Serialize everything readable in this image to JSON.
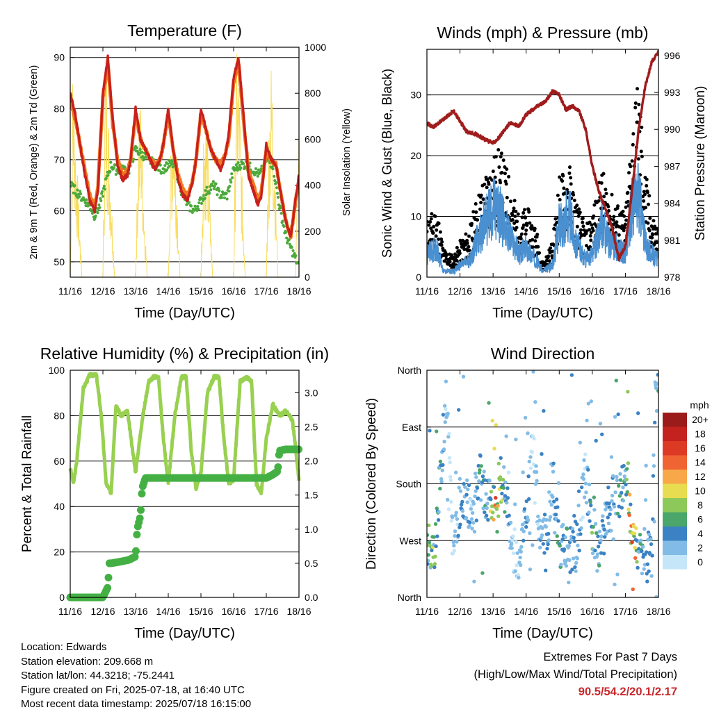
{
  "chart_data": [
    {
      "type": "line",
      "title": "Temperature (F)",
      "xlabel": "Time (Day/UTC)",
      "ylabel": "2m & 9m T (Red, Orange) & 2m Td (Green)",
      "y2label": "Solar Insolation (Yellow)",
      "x_ticks": [
        "11/16",
        "12/16",
        "13/16",
        "14/16",
        "15/16",
        "16/16",
        "17/16",
        "18/16"
      ],
      "ylim": [
        47,
        92
      ],
      "y_ticks": [
        50,
        60,
        70,
        80,
        90
      ],
      "y2lim": [
        0,
        1000
      ],
      "y2_ticks": [
        0,
        200,
        400,
        600,
        800,
        1000
      ],
      "grid": "horizontal",
      "colors": {
        "t2m": "#c8201c",
        "t9m": "#f07820",
        "td2m": "#4caa3c",
        "solar": "#f8dc5c"
      },
      "series": [
        {
          "key": "t2m",
          "x": [
            0,
            0.15,
            0.3,
            0.45,
            0.6,
            0.75,
            0.85,
            1.0,
            1.15,
            1.3,
            1.45,
            1.6,
            1.75,
            1.85,
            2.0,
            2.15,
            2.3,
            2.45,
            2.6,
            2.75,
            2.85,
            3.0,
            3.15,
            3.3,
            3.45,
            3.6,
            3.75,
            3.85,
            4.0,
            4.15,
            4.3,
            4.45,
            4.6,
            4.75,
            4.85,
            5.0,
            5.15,
            5.3,
            5.45,
            5.6,
            5.75,
            5.85,
            6.0,
            6.15,
            6.3,
            6.45,
            6.6,
            6.75,
            6.85,
            7.0
          ],
          "values": [
            83,
            79,
            73,
            67,
            62,
            60,
            64,
            83,
            90,
            78,
            69,
            66,
            67,
            70,
            80,
            74,
            72,
            70,
            68,
            70,
            73,
            80,
            72,
            66,
            63,
            62,
            66,
            70,
            80,
            76,
            72,
            70,
            68,
            71,
            75,
            86,
            90,
            79,
            67,
            64,
            61,
            63,
            73,
            70,
            69,
            63,
            58,
            55,
            60,
            67
          ]
        },
        {
          "key": "t9m",
          "x": [
            0,
            0.15,
            0.3,
            0.45,
            0.6,
            0.75,
            0.85,
            1.0,
            1.15,
            1.3,
            1.45,
            1.6,
            1.75,
            1.85,
            2.0,
            2.15,
            2.3,
            2.45,
            2.6,
            2.75,
            2.85,
            3.0,
            3.15,
            3.3,
            3.45,
            3.6,
            3.75,
            3.85,
            4.0,
            4.15,
            4.3,
            4.45,
            4.6,
            4.75,
            4.85,
            5.0,
            5.15,
            5.3,
            5.45,
            5.6,
            5.75,
            5.85,
            6.0,
            6.15,
            6.3,
            6.45,
            6.6,
            6.75,
            6.85,
            7.0
          ],
          "values": [
            82,
            78,
            73,
            68,
            63,
            61,
            65,
            82,
            89,
            77,
            70,
            67,
            68,
            70,
            79,
            74,
            72,
            70,
            69,
            70,
            73,
            79,
            72,
            67,
            64,
            63,
            66,
            70,
            79,
            76,
            72,
            70,
            69,
            71,
            74,
            85,
            89,
            78,
            68,
            65,
            62,
            64,
            72,
            70,
            69,
            63,
            58,
            55,
            60,
            66
          ]
        },
        {
          "key": "td2m",
          "x": [
            0,
            0.15,
            0.3,
            0.45,
            0.6,
            0.75,
            0.9,
            1.1,
            1.25,
            1.4,
            1.6,
            1.8,
            2.0,
            2.2,
            2.4,
            2.6,
            2.8,
            3.0,
            3.2,
            3.4,
            3.6,
            3.8,
            4.0,
            4.2,
            4.4,
            4.6,
            4.8,
            5.0,
            5.2,
            5.4,
            5.6,
            5.8,
            6.0,
            6.2,
            6.4,
            6.6,
            6.8,
            7.0
          ],
          "values": [
            65,
            64,
            63,
            62,
            61,
            59,
            61,
            66,
            69,
            68,
            68,
            68,
            72,
            71,
            70,
            69,
            68,
            69,
            69,
            64,
            61,
            60,
            62,
            64,
            65,
            63,
            63,
            68,
            69,
            69,
            68,
            67,
            70,
            69,
            61,
            55,
            52,
            49
          ]
        },
        {
          "key": "solar",
          "x": [
            0,
            0.08,
            0.16,
            0.26,
            0.36,
            0.9,
            1.0,
            1.08,
            1.16,
            1.26,
            1.36,
            1.9,
            2.0,
            2.08,
            2.16,
            2.26,
            2.36,
            2.9,
            3.0,
            3.08,
            3.16,
            3.26,
            3.36,
            3.9,
            4.0,
            4.08,
            4.16,
            4.26,
            4.36,
            4.9,
            5.0,
            5.08,
            5.16,
            5.26,
            5.36,
            5.9,
            6.0,
            6.08,
            6.16,
            6.26,
            6.36,
            6.9,
            7.0
          ],
          "values": [
            0,
            950,
            600,
            300,
            0,
            0,
            0,
            980,
            700,
            350,
            0,
            0,
            0,
            600,
            750,
            300,
            0,
            0,
            0,
            550,
            800,
            400,
            0,
            0,
            0,
            650,
            700,
            350,
            0,
            0,
            0,
            900,
            850,
            400,
            0,
            0,
            0,
            700,
            900,
            500,
            0,
            0,
            900
          ]
        }
      ]
    },
    {
      "type": "scatter",
      "title": "Winds (mph) & Pressure (mb)",
      "xlabel": "Time (Day/UTC)",
      "ylabel": "Sonic Wind & Gust (Blue, Black)",
      "y2label": "Station Pressure (Maroon)",
      "x_ticks": [
        "11/16",
        "12/16",
        "13/16",
        "14/16",
        "15/16",
        "16/16",
        "17/16",
        "18/16"
      ],
      "ylim": [
        0,
        37.5
      ],
      "y_ticks": [
        0,
        10,
        20,
        30
      ],
      "y2lim": [
        978,
        996.5
      ],
      "y2_ticks": [
        978,
        981,
        984,
        987,
        990,
        993,
        996
      ],
      "grid": "horizontal",
      "colors": {
        "wind": "#4a90d0",
        "gust": "#000000",
        "pressure": "#a01c1c"
      },
      "series": [
        {
          "key": "wind",
          "x": [
            0,
            0.3,
            0.5,
            0.8,
            1.0,
            1.3,
            1.5,
            1.8,
            2.0,
            2.2,
            2.5,
            2.8,
            3.0,
            3.3,
            3.5,
            3.8,
            4.0,
            4.3,
            4.5,
            4.8,
            5.0,
            5.3,
            5.5,
            5.8,
            6.0,
            6.2,
            6.4,
            6.6,
            6.8,
            7.0
          ],
          "values": [
            4,
            5,
            1,
            1,
            2,
            3,
            6,
            10,
            12,
            11,
            7,
            4,
            5,
            3,
            1,
            2,
            9,
            11,
            6,
            3,
            4,
            9,
            6,
            5,
            4,
            12,
            14,
            6,
            4,
            3
          ]
        },
        {
          "key": "gust",
          "x": [
            0,
            0.3,
            0.5,
            0.8,
            1.0,
            1.3,
            1.5,
            1.8,
            2.0,
            2.2,
            2.5,
            2.8,
            3.0,
            3.3,
            3.5,
            3.8,
            4.0,
            4.3,
            4.5,
            4.8,
            5.0,
            5.3,
            5.5,
            5.8,
            6.0,
            6.2,
            6.4,
            6.6,
            6.8,
            7.0
          ],
          "values": [
            8,
            10,
            4,
            3,
            5,
            7,
            11,
            15,
            17,
            18,
            14,
            8,
            10,
            7,
            2,
            5,
            14,
            16,
            11,
            7,
            9,
            15,
            12,
            10,
            9,
            22,
            28,
            15,
            9,
            7
          ]
        },
        {
          "key": "pressure",
          "x": [
            0,
            0.2,
            0.5,
            0.8,
            1.0,
            1.2,
            1.5,
            1.8,
            2.0,
            2.2,
            2.5,
            2.8,
            3.0,
            3.3,
            3.6,
            3.8,
            4.0,
            4.2,
            4.4,
            4.6,
            4.8,
            5.0,
            5.2,
            5.4,
            5.6,
            5.8,
            6.0,
            6.2,
            6.4,
            6.6,
            6.8,
            7.0
          ],
          "values": [
            990.5,
            990.2,
            990.8,
            991.5,
            990.7,
            989.8,
            989.6,
            989.1,
            988.9,
            989.4,
            990.5,
            990.3,
            991.2,
            991.8,
            992.3,
            993.1,
            992.8,
            991.6,
            991.9,
            991.5,
            990.0,
            987.0,
            985.0,
            983.5,
            982.0,
            979.5,
            980.5,
            985.0,
            990.0,
            993.5,
            995.5,
            996.3
          ]
        }
      ]
    },
    {
      "type": "scatter",
      "title": "Relative Humidity (%) & Precipitation (in)",
      "xlabel": "Time (Day/UTC)",
      "ylabel": "Percent & Total Rainfall",
      "x_ticks": [
        "11/16",
        "12/16",
        "13/16",
        "14/16",
        "15/16",
        "16/16",
        "17/16",
        "18/16"
      ],
      "ylim": [
        0,
        100
      ],
      "y_ticks": [
        0,
        20,
        40,
        60,
        80,
        100
      ],
      "y2lim": [
        0,
        3.33
      ],
      "y2_ticks": [
        "0.0",
        "0.5",
        "1.0",
        "1.5",
        "2.0",
        "2.5",
        "3.0"
      ],
      "grid": "horizontal",
      "colors": {
        "rh": "#98d050",
        "precip": "#44b044"
      },
      "series": [
        {
          "key": "rh",
          "x": [
            0,
            0.1,
            0.2,
            0.4,
            0.6,
            0.8,
            0.95,
            1.1,
            1.25,
            1.4,
            1.55,
            1.75,
            2.0,
            2.2,
            2.4,
            2.55,
            2.7,
            2.85,
            3.0,
            3.2,
            3.4,
            3.55,
            3.7,
            3.85,
            4.0,
            4.2,
            4.4,
            4.55,
            4.7,
            4.85,
            5.0,
            5.2,
            5.4,
            5.55,
            5.7,
            5.85,
            6.0,
            6.2,
            6.4,
            6.6,
            6.8,
            7.0
          ],
          "values": [
            57,
            50,
            60,
            92,
            98,
            98,
            80,
            50,
            46,
            85,
            80,
            82,
            55,
            78,
            95,
            97,
            97,
            70,
            50,
            80,
            97,
            97,
            65,
            48,
            55,
            90,
            97,
            97,
            70,
            50,
            52,
            95,
            97,
            95,
            50,
            46,
            70,
            85,
            80,
            82,
            78,
            52
          ]
        },
        {
          "key": "precip",
          "x": [
            0,
            0.5,
            1.0,
            1.15,
            1.2,
            1.25,
            1.5,
            1.8,
            2.0,
            2.05,
            2.15,
            2.2,
            2.3,
            3.0,
            4.0,
            5.0,
            6.0,
            6.2,
            6.35,
            6.4,
            6.6,
            7.0
          ],
          "values": [
            0.0,
            0.0,
            0.0,
            0.15,
            0.5,
            0.5,
            0.52,
            0.55,
            0.6,
            1.0,
            1.2,
            1.6,
            1.75,
            1.75,
            1.75,
            1.75,
            1.75,
            1.8,
            1.85,
            2.15,
            2.17,
            2.17
          ]
        }
      ]
    },
    {
      "type": "scatter",
      "title": "Wind Direction",
      "xlabel": "Time (Day/UTC)",
      "ylabel": "Direction (Colored By Speed)",
      "x_ticks": [
        "11/16",
        "12/16",
        "13/16",
        "14/16",
        "15/16",
        "16/16",
        "17/16",
        "18/16"
      ],
      "ylim": [
        0,
        360
      ],
      "y_ticks": [
        "North",
        "East",
        "South",
        "West",
        "North"
      ],
      "y_tick_values": [
        360,
        270,
        180,
        90,
        0
      ],
      "grid": "horizontal",
      "legend": {
        "title": "mph",
        "labels": [
          "20+",
          "18",
          "16",
          "14",
          "12",
          "10",
          "8",
          "6",
          "4",
          "2",
          "0"
        ],
        "colors": [
          "#9b1b1b",
          "#c4221e",
          "#dd3a26",
          "#ef6432",
          "#f8a848",
          "#e8dc50",
          "#8cc85a",
          "#4aa66a",
          "#3a82c4",
          "#82bce6",
          "#c4e6f8"
        ]
      },
      "series": [
        {
          "key": "direction",
          "x": [
            0.1,
            0.2,
            0.3,
            0.6,
            0.8,
            1.0,
            1.2,
            1.4,
            1.6,
            1.8,
            2.0,
            2.1,
            2.2,
            2.4,
            2.6,
            2.8,
            3.0,
            3.2,
            3.4,
            3.6,
            3.8,
            4.0,
            4.2,
            4.4,
            4.6,
            4.8,
            5.0,
            5.2,
            5.4,
            5.6,
            5.8,
            6.0,
            6.1,
            6.2,
            6.4,
            6.6,
            6.8,
            6.9,
            7.0
          ],
          "values": [
            75,
            60,
            120,
            330,
            80,
            150,
            160,
            130,
            200,
            150,
            170,
            120,
            200,
            160,
            80,
            50,
            130,
            250,
            100,
            80,
            200,
            80,
            90,
            70,
            110,
            200,
            90,
            70,
            120,
            170,
            150,
            200,
            140,
            110,
            60,
            80,
            50,
            330,
            320
          ],
          "speeds": [
            6,
            8,
            6,
            2,
            1,
            4,
            3,
            2,
            6,
            4,
            10,
            14,
            10,
            4,
            1,
            2,
            4,
            1,
            3,
            4,
            2,
            6,
            4,
            4,
            3,
            2,
            6,
            4,
            4,
            3,
            6,
            4,
            12,
            16,
            6,
            4,
            4,
            4,
            4
          ]
        }
      ]
    }
  ],
  "footer": {
    "location": "Location: Edwards",
    "elevation": "Station elevation: 209.668 m",
    "latlon": "Station lat/lon: 44.3218; -75.2441",
    "created": "Figure created on Fri, 2025-07-18, at 16:40 UTC",
    "recent": "Most recent data timestamp: 2025/07/18 16:15:00",
    "extremes_title": "Extremes For Past 7 Days",
    "extremes_sub": "(High/Low/Max Wind/Total Precipitation)",
    "extremes_values": "90.5/54.2/20.1/2.17"
  }
}
